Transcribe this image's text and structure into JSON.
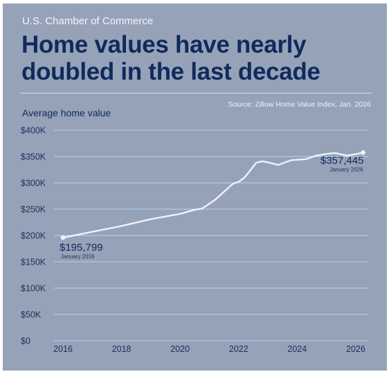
{
  "header": {
    "publisher": "U.S. Chamber of Commerce",
    "headline": "Home values have nearly doubled in the last decade"
  },
  "source": "Source: Zillow Home Value Index, Jan. 2026",
  "colors": {
    "background": "#95a2b8",
    "headline": "#102a5c",
    "line": "#eef3fb",
    "gridline": "#b6d7ea"
  },
  "chart_data": {
    "type": "line",
    "ylabel": "Average home value",
    "xlabel": "",
    "xlim": [
      2016,
      2026.4
    ],
    "ylim": [
      0,
      400000
    ],
    "x_ticks": [
      "2016",
      "2018",
      "2020",
      "2022",
      "2024",
      "2026"
    ],
    "y_ticks": [
      {
        "value": 0,
        "label": "$0"
      },
      {
        "value": 50000,
        "label": "$50K"
      },
      {
        "value": 100000,
        "label": "$100K"
      },
      {
        "value": 150000,
        "label": "$150K"
      },
      {
        "value": 200000,
        "label": "$200K"
      },
      {
        "value": 250000,
        "label": "$250K"
      },
      {
        "value": 300000,
        "label": "$300K"
      },
      {
        "value": 350000,
        "label": "$350K"
      },
      {
        "value": 400000,
        "label": "$400K"
      }
    ],
    "grid": true,
    "series": [
      {
        "x": [
          2016.0,
          2017.0,
          2018.0,
          2019.0,
          2020.0,
          2020.5,
          2020.75,
          2021.2,
          2021.8,
          2022.0,
          2022.2,
          2022.6,
          2022.8,
          2023.0,
          2023.35,
          2023.8,
          2024.3,
          2024.6,
          2025.0,
          2025.3,
          2025.7,
          2026.0,
          2026.25
        ],
        "y": [
          195799,
          207000,
          218000,
          231000,
          241000,
          249000,
          251000,
          268000,
          298000,
          302000,
          310000,
          338000,
          341000,
          339000,
          334000,
          343000,
          345000,
          351000,
          355000,
          356500,
          352000,
          354500,
          357445
        ]
      }
    ],
    "annotations": [
      {
        "value": "$195,799",
        "date": "January 2016",
        "x": 2016.0,
        "y": 195799
      },
      {
        "value": "$357,445",
        "date": "January 2026",
        "x": 2026.25,
        "y": 357445
      }
    ]
  }
}
